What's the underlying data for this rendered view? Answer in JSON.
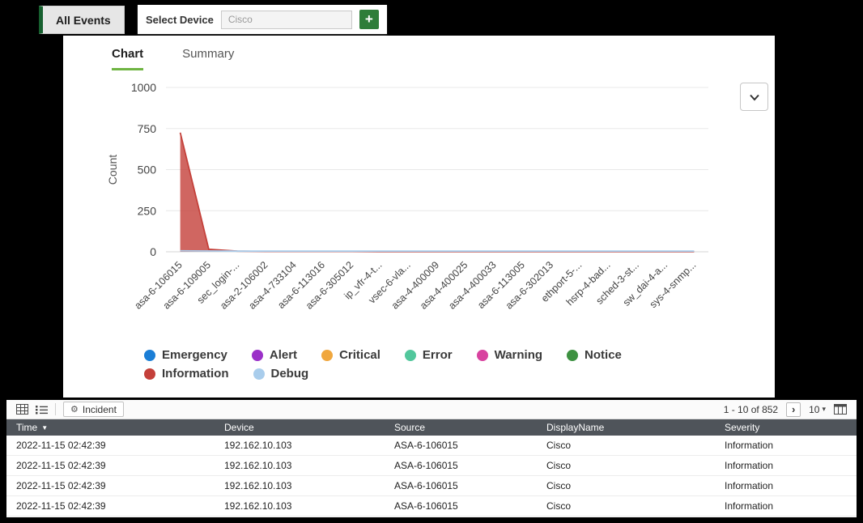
{
  "header": {
    "all_events_label": "All Events",
    "select_device_label": "Select Device",
    "device_value": "Cisco",
    "add_label": "+"
  },
  "tabs": {
    "chart": "Chart",
    "summary": "Summary"
  },
  "icons": {
    "next_page": "›",
    "caret_down": "▾",
    "sort_desc": "▼",
    "incident_gear": "⚙"
  },
  "chart_data": {
    "type": "line",
    "title": "",
    "xlabel": "",
    "ylabel": "Count",
    "ylim": [
      0,
      1000
    ],
    "yticks": [
      0,
      250,
      500,
      750,
      1000
    ],
    "grid": true,
    "legend_position": "bottom",
    "categories": [
      "asa-6-106015",
      "asa-6-109005",
      "sec_login-...",
      "asa-2-106002",
      "asa-4-733104",
      "asa-6-113016",
      "asa-6-305012",
      "ip_vfr-4-t...",
      "vsec-6-vla...",
      "asa-4-400009",
      "asa-4-400025",
      "asa-4-400033",
      "asa-6-113005",
      "asa-6-302013",
      "ethport-5-...",
      "hsrp-4-bad...",
      "sched-3-st...",
      "sw_dai-4-a...",
      "sys-4-snmp..."
    ],
    "series": [
      {
        "name": "Emergency",
        "color": "#1b7ed6",
        "values": [
          0,
          0,
          0,
          0,
          0,
          0,
          0,
          0,
          0,
          0,
          0,
          0,
          0,
          0,
          0,
          0,
          0,
          0,
          0
        ]
      },
      {
        "name": "Alert",
        "color": "#9b30c8",
        "values": [
          0,
          0,
          0,
          0,
          0,
          0,
          0,
          0,
          0,
          0,
          0,
          0,
          0,
          0,
          0,
          0,
          0,
          0,
          0
        ]
      },
      {
        "name": "Critical",
        "color": "#f0a73e",
        "values": [
          0,
          0,
          0,
          0,
          0,
          0,
          0,
          0,
          0,
          0,
          0,
          0,
          0,
          0,
          0,
          0,
          0,
          0,
          0
        ]
      },
      {
        "name": "Error",
        "color": "#52c79c",
        "values": [
          0,
          0,
          0,
          0,
          0,
          0,
          0,
          0,
          0,
          0,
          0,
          0,
          0,
          0,
          0,
          0,
          0,
          0,
          0
        ]
      },
      {
        "name": "Warning",
        "color": "#d8429f",
        "values": [
          0,
          0,
          0,
          0,
          0,
          0,
          0,
          0,
          0,
          0,
          0,
          0,
          0,
          0,
          0,
          0,
          0,
          0,
          0
        ]
      },
      {
        "name": "Notice",
        "color": "#3d9141",
        "values": [
          0,
          0,
          0,
          0,
          0,
          0,
          0,
          0,
          0,
          0,
          0,
          0,
          0,
          0,
          0,
          0,
          0,
          0,
          0
        ]
      },
      {
        "name": "Information",
        "color": "#c4403a",
        "values": [
          725,
          15,
          4,
          2,
          2,
          2,
          2,
          1,
          1,
          1,
          1,
          1,
          1,
          1,
          1,
          1,
          1,
          1,
          1
        ]
      },
      {
        "name": "Debug",
        "color": "#a9cdec",
        "values": [
          6,
          5,
          4,
          4,
          4,
          4,
          4,
          4,
          4,
          4,
          4,
          4,
          4,
          4,
          4,
          4,
          4,
          4,
          4
        ]
      }
    ]
  },
  "table": {
    "toolbar": {
      "incident_label": "Incident",
      "pagination": "1 - 10 of 852",
      "page_size": "10"
    },
    "columns": [
      "Time",
      "Device",
      "Source",
      "DisplayName",
      "Severity"
    ],
    "sort_column": "Time",
    "rows": [
      [
        "2022-11-15 02:42:39",
        "192.162.10.103",
        "ASA-6-106015",
        "Cisco",
        "Information"
      ],
      [
        "2022-11-15 02:42:39",
        "192.162.10.103",
        "ASA-6-106015",
        "Cisco",
        "Information"
      ],
      [
        "2022-11-15 02:42:39",
        "192.162.10.103",
        "ASA-6-106015",
        "Cisco",
        "Information"
      ],
      [
        "2022-11-15 02:42:39",
        "192.162.10.103",
        "ASA-6-106015",
        "Cisco",
        "Information"
      ]
    ]
  }
}
